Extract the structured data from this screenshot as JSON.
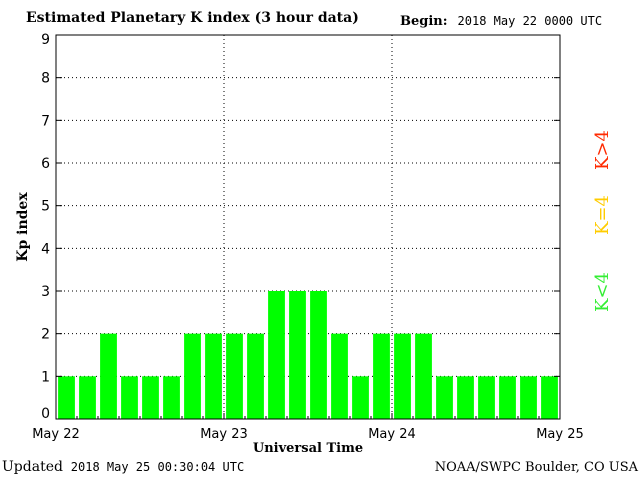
{
  "header": {
    "title": "Estimated Planetary K index (3 hour data)",
    "begin_label": "Begin:",
    "begin_value": "2018 May 22 0000 UTC"
  },
  "footer": {
    "updated_label": "Updated",
    "updated_value": "2018 May 25 00:30:04 UTC",
    "source": "NOAA/SWPC Boulder, CO USA"
  },
  "legend": {
    "high": "K>4",
    "mid": "K=4",
    "low": "K<4"
  },
  "colors": {
    "bar_low": "#00ff00",
    "bar_mid": "#ffd700",
    "bar_high": "#ff2a00",
    "legend_low": "#33ee33",
    "legend_mid": "#ffcc00",
    "legend_high": "#ff2a00",
    "grid": "#000000"
  },
  "chart_data": {
    "type": "bar",
    "title": "Estimated Planetary K index (3 hour data)",
    "xlabel": "Universal Time",
    "ylabel": "Kp index",
    "ylim": [
      0,
      9
    ],
    "yticks": [
      "0",
      "1",
      "2",
      "3",
      "4",
      "5",
      "6",
      "7",
      "8",
      "9"
    ],
    "xticks": [
      "May 22",
      "May 23",
      "May 24",
      "May 25"
    ],
    "grid": true,
    "values": [
      1,
      1,
      2,
      1,
      1,
      1,
      2,
      2,
      2,
      2,
      3,
      3,
      3,
      2,
      1,
      2,
      2,
      2,
      1,
      1,
      1,
      1,
      1,
      1
    ]
  }
}
